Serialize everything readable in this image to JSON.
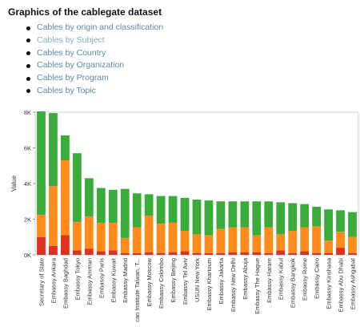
{
  "header": {
    "title": "Graphics of the cablegate dataset"
  },
  "links": [
    {
      "label": "Cables by origin and classification"
    },
    {
      "label": "Cables by Subject"
    },
    {
      "label": "Cables by Country"
    },
    {
      "label": "Cables by Organization"
    },
    {
      "label": "Cables by Program"
    },
    {
      "label": "Cables by Topic"
    }
  ],
  "colors": {
    "red": "#e03020",
    "orange": "#ff8c1a",
    "green": "#3aac3a",
    "link": "#5f89a6"
  },
  "chart_data": {
    "type": "bar",
    "stacked": true,
    "ylabel": "Value",
    "ylim": [
      0,
      8000
    ],
    "yticks": [
      0,
      2000,
      4000,
      6000,
      8000
    ],
    "ytick_labels": [
      "0K",
      "2K",
      "4K",
      "6K",
      "8K"
    ],
    "legend": "none",
    "categories": [
      "Secretary of State",
      "Embassy Ankara",
      "Embassy Baghdad",
      "Embassy Tokyo",
      "Embassy Amman",
      "Embassy Paris",
      "Embassy Kuwait",
      "Embassy Madrid",
      "can Institute Taiwan, T...",
      "Embassy Moscow",
      "Embassy Colombo",
      "Embassy Beijing",
      "Embassy Tel Aviv",
      "USUN New York",
      "Embassy Khartoum",
      "Embassy Jakarta",
      "Embassy New Delhi",
      "Embassy Abuja",
      "Embassy The Hague",
      "Embassy Harare",
      "Embassy Kabul",
      "Embassy Bangkok",
      "Embassy Rome",
      "Embassy Cairo",
      "Embassy Kinshasa",
      "Embassy Abu Dhabi",
      "Embassy Ashgabat"
    ],
    "series": [
      {
        "values": [
          1000,
          500,
          1100,
          250,
          350,
          200,
          250,
          100,
          100,
          150,
          100,
          150,
          200,
          100,
          100,
          100,
          150,
          150,
          150,
          100,
          250,
          100,
          200,
          100,
          100,
          400,
          100
        ]
      },
      {
        "values": [
          1250,
          3350,
          4200,
          1600,
          1800,
          1600,
          1550,
          850,
          1450,
          2050,
          1650,
          1650,
          1150,
          1050,
          1000,
          1350,
          1400,
          1400,
          950,
          1450,
          900,
          1250,
          1350,
          1500,
          700,
          900,
          900
        ]
      },
      {
        "values": [
          5800,
          4100,
          1400,
          3850,
          2150,
          1950,
          1850,
          2750,
          1900,
          1200,
          1550,
          1500,
          1850,
          1950,
          1950,
          1550,
          1450,
          1450,
          1900,
          1450,
          1800,
          1550,
          1300,
          1100,
          1750,
          1200,
          1400
        ]
      }
    ]
  }
}
